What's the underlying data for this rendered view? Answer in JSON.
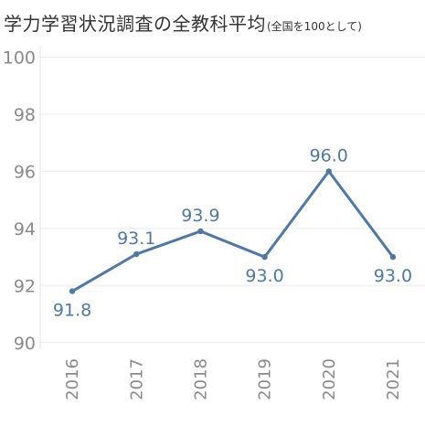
{
  "title": "学力学習状況調査の全教科平均",
  "subtitle": "(全国を100として)",
  "chart_data": {
    "type": "line",
    "x": [
      "2016",
      "2017",
      "2018",
      "2019",
      "2020",
      "2021"
    ],
    "series": [
      {
        "values": [
          91.8,
          93.1,
          93.9,
          93.0,
          96.0,
          93.0
        ]
      }
    ],
    "data_labels": [
      "91.8",
      "93.1",
      "93.9",
      "93.0",
      "96.0",
      "93.0"
    ],
    "ylim": [
      89.8,
      100.4
    ],
    "yticks": [
      "90",
      "92",
      "94",
      "96",
      "98",
      "100"
    ],
    "grid": true,
    "color": "#4e79a7"
  }
}
